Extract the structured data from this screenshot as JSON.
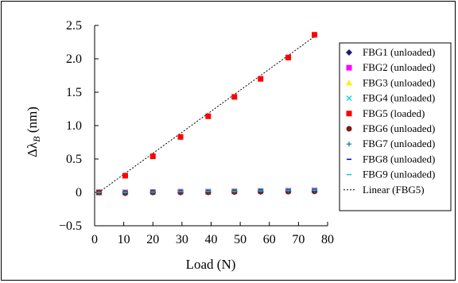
{
  "chart_data": {
    "type": "scatter",
    "xlabel": "Load (N)",
    "ylabel": "Δλ_B (nm)",
    "ylabel_main": "Δλ",
    "ylabel_sub": "B",
    "ylabel_unit": " (nm)",
    "xlim": [
      0,
      80
    ],
    "ylim": [
      -0.5,
      2.5
    ],
    "xticks": [
      0,
      10,
      20,
      30,
      40,
      50,
      60,
      70,
      80
    ],
    "yticks": [
      -0.5,
      0,
      0.5,
      1.0,
      1.5,
      2.0,
      2.5
    ],
    "xtick_labels": [
      "0",
      "10",
      "20",
      "30",
      "40",
      "50",
      "60",
      "70",
      "80"
    ],
    "ytick_labels": [
      "−0.5",
      "0",
      "0.5",
      "1.0",
      "1.5",
      "2.0",
      "2.5"
    ],
    "grid": false,
    "legend_position": "right",
    "x": [
      1.5,
      10.5,
      20,
      29.5,
      39,
      48,
      57,
      66.5,
      75.5
    ],
    "series": [
      {
        "name": "FBG1 (unloaded)",
        "marker": "diamond",
        "color": "#1a1a7a",
        "values": [
          0,
          -0.01,
          0,
          0,
          0.005,
          0.01,
          0.01,
          0.015,
          0.02
        ]
      },
      {
        "name": "FBG2 (unloaded)",
        "marker": "square",
        "color": "#ff00ff",
        "values": [
          0,
          0,
          0.005,
          0.01,
          0.01,
          0.015,
          0.02,
          0.025,
          0.03
        ]
      },
      {
        "name": "FBG3 (unloaded)",
        "marker": "triangle",
        "color": "#ffee00",
        "values": [
          0,
          0,
          0.005,
          0.01,
          0.015,
          0.02,
          0.02,
          0.025,
          0.03
        ]
      },
      {
        "name": "FBG4 (unloaded)",
        "marker": "x",
        "color": "#00cccc",
        "values": [
          0,
          0.005,
          0.01,
          0.01,
          0.015,
          0.02,
          0.025,
          0.03,
          0.035
        ]
      },
      {
        "name": "FBG5 (loaded)",
        "marker": "square",
        "color": "#ff0000",
        "values": [
          0,
          0.25,
          0.54,
          0.83,
          1.14,
          1.43,
          1.7,
          2.02,
          2.36
        ]
      },
      {
        "name": "FBG6 (unloaded)",
        "marker": "circle",
        "color": "#7a1a1a",
        "values": [
          0,
          -0.01,
          0,
          0,
          0,
          0.005,
          0.01,
          0.01,
          0.015
        ]
      },
      {
        "name": "FBG7 (unloaded)",
        "marker": "plus",
        "color": "#008080",
        "values": [
          0,
          0,
          0.005,
          0.01,
          0.01,
          0.015,
          0.02,
          0.02,
          0.025
        ]
      },
      {
        "name": "FBG8 (unloaded)",
        "marker": "dash",
        "color": "#0000cc",
        "values": [
          0,
          0,
          0.005,
          0.005,
          0.01,
          0.015,
          0.015,
          0.02,
          0.025
        ]
      },
      {
        "name": "FBG9 (unloaded)",
        "marker": "dash",
        "color": "#00cccc",
        "values": [
          0,
          0,
          0.005,
          0.01,
          0.015,
          0.015,
          0.02,
          0.025,
          0.03
        ]
      }
    ],
    "fit_line": {
      "name": "Linear (FBG5)",
      "style": "dotted",
      "color": "#000000",
      "x": [
        0.5,
        76
      ],
      "y": [
        -0.03,
        2.35
      ]
    }
  }
}
